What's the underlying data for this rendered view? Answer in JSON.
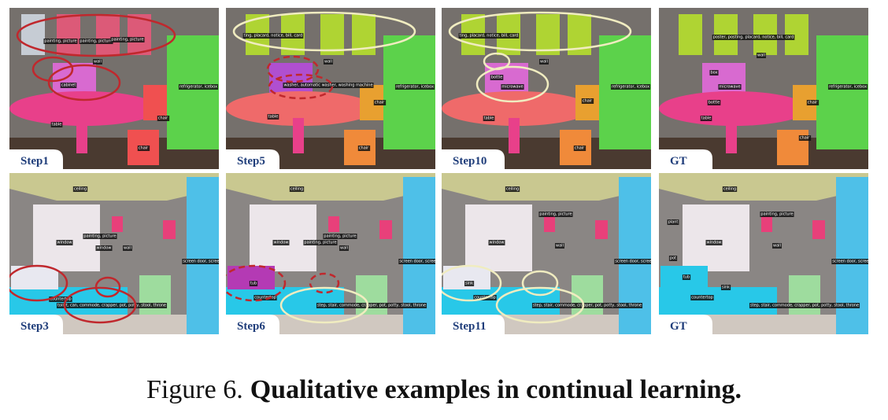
{
  "figure": {
    "panels": [
      {
        "label": "Step1",
        "tags": [
          "painting, picture",
          "painting, picture",
          "painting, picture",
          "wall",
          "cabinet",
          "table",
          "chair",
          "chair",
          "refrigerator, icebox"
        ]
      },
      {
        "label": "Step5",
        "tags": [
          "ting, placard, notice, bill, card",
          "wall",
          "washer, automatic washer, washing machine",
          "table",
          "chair",
          "chair",
          "refrigerator, icebox"
        ]
      },
      {
        "label": "Step10",
        "tags": [
          "ting, placard, notice, bill, card",
          "wall",
          "bottle",
          "microwave",
          "table",
          "chair",
          "chair",
          "refrigerator, icebox"
        ]
      },
      {
        "label": "GT",
        "tags": [
          "poster, posting, placard, notice, bill, card",
          "wall",
          "box",
          "microwave",
          "bottle",
          "table",
          "chair",
          "chair",
          "refrigerator, icebox"
        ]
      },
      {
        "label": "Step3",
        "tags": [
          "ceiling",
          "window",
          "painting, picture",
          "window",
          "wall",
          "screen door, screen",
          "countertop",
          "toilet, can, commode, crapper, pot, potty, stool, throne"
        ]
      },
      {
        "label": "Step6",
        "tags": [
          "ceiling",
          "window",
          "painting, picture",
          "painting, picture",
          "wall",
          "screen door, screen",
          "tub",
          "countertop",
          "step, stair, commode, crapper, pot, potty, stool, throne"
        ]
      },
      {
        "label": "Step11",
        "tags": [
          "ceiling",
          "window",
          "painting, picture",
          "wall",
          "screen door, screen",
          "sink",
          "countertop",
          "step, stair, commode, crapper, pot, potty, stool, throne"
        ]
      },
      {
        "label": "GT",
        "tags": [
          "ceiling",
          "plant",
          "window",
          "painting, picture",
          "wall",
          "screen door, screen",
          "pot",
          "sink",
          "tub",
          "countertop",
          "step, stair, commode, crapper, pot, potty, stool, throne"
        ]
      }
    ],
    "caption": {
      "number": "Figure 6.",
      "text": "Qualitative examples in continual learning."
    }
  }
}
